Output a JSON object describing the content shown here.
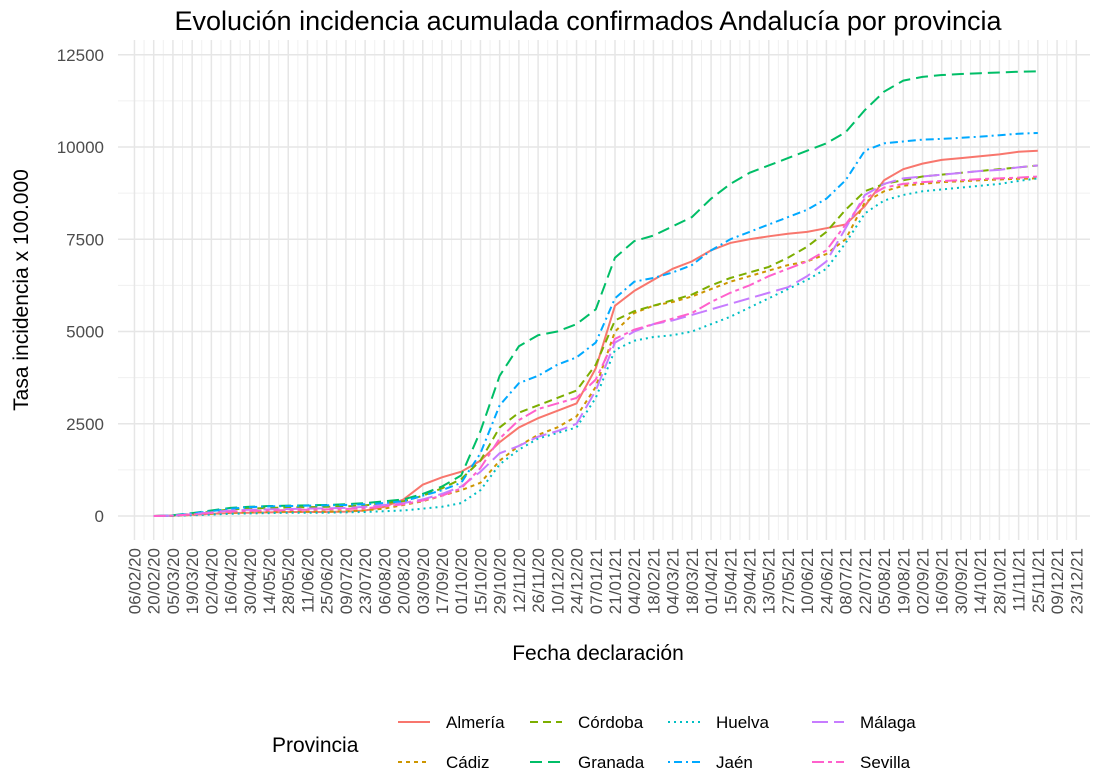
{
  "chart_data": {
    "type": "line",
    "title": "Evolución incidencia acumulada confirmados Andalucía por provincia",
    "x_label": "Fecha declaración",
    "y_label": "Tasa incidencia x 100.000",
    "legend_title": "Provincia",
    "x": [
      "20/02/20",
      "05/03/20",
      "19/03/20",
      "02/04/20",
      "16/04/20",
      "30/04/20",
      "14/05/20",
      "28/05/20",
      "11/06/20",
      "25/06/20",
      "09/07/20",
      "23/07/20",
      "06/08/20",
      "20/08/20",
      "03/09/20",
      "17/09/20",
      "01/10/20",
      "15/10/20",
      "29/10/20",
      "12/11/20",
      "26/11/20",
      "10/12/20",
      "24/12/20",
      "07/01/21",
      "21/01/21",
      "04/02/21",
      "18/02/21",
      "04/03/21",
      "18/03/21",
      "01/04/21",
      "15/04/21",
      "29/04/21",
      "13/05/21",
      "27/05/21",
      "10/06/21",
      "24/06/21",
      "08/07/21",
      "22/07/21",
      "05/08/21",
      "19/08/21",
      "02/09/21",
      "16/09/21",
      "30/09/21",
      "14/10/21",
      "28/10/21",
      "11/11/21",
      "25/11/21"
    ],
    "series": [
      {
        "name": "Almería",
        "color": "#F8766D",
        "linetype": "solid",
        "values": [
          0,
          10,
          30,
          60,
          80,
          90,
          100,
          110,
          110,
          110,
          120,
          150,
          250,
          450,
          850,
          1050,
          1200,
          1500,
          2000,
          2400,
          2650,
          2850,
          3050,
          4000,
          5700,
          6100,
          6400,
          6700,
          6900,
          7200,
          7400,
          7500,
          7580,
          7650,
          7700,
          7800,
          7900,
          8400,
          9100,
          9400,
          9550,
          9650,
          9700,
          9750,
          9800,
          9870,
          9900
        ]
      },
      {
        "name": "Cádiz",
        "color": "#CD9600",
        "linetype": "dotted-dash",
        "values": [
          0,
          5,
          30,
          60,
          90,
          100,
          110,
          120,
          120,
          120,
          130,
          150,
          200,
          300,
          400,
          550,
          700,
          900,
          1500,
          1900,
          2200,
          2400,
          2700,
          3500,
          5000,
          5500,
          5700,
          5800,
          5950,
          6150,
          6350,
          6500,
          6650,
          6800,
          6900,
          7100,
          7500,
          8500,
          8800,
          8950,
          9000,
          9050,
          9070,
          9100,
          9120,
          9140,
          9150
        ]
      },
      {
        "name": "Córdoba",
        "color": "#7CAE00",
        "linetype": "dashed",
        "values": [
          0,
          10,
          60,
          120,
          180,
          200,
          220,
          230,
          240,
          250,
          260,
          290,
          350,
          400,
          550,
          750,
          1000,
          1500,
          2400,
          2800,
          3000,
          3200,
          3400,
          4100,
          5300,
          5550,
          5700,
          5850,
          6000,
          6250,
          6450,
          6600,
          6750,
          7000,
          7300,
          7700,
          8300,
          8800,
          9000,
          9100,
          9200,
          9250,
          9300,
          9350,
          9400,
          9450,
          9500
        ]
      },
      {
        "name": "Granada",
        "color": "#00BE67",
        "linetype": "longdash",
        "values": [
          0,
          20,
          80,
          150,
          220,
          250,
          270,
          280,
          290,
          300,
          320,
          350,
          400,
          450,
          600,
          800,
          1100,
          2300,
          3800,
          4600,
          4900,
          5000,
          5200,
          5600,
          7000,
          7450,
          7600,
          7850,
          8100,
          8600,
          9000,
          9300,
          9500,
          9700,
          9900,
          10100,
          10400,
          11000,
          11500,
          11800,
          11900,
          11950,
          11980,
          12000,
          12020,
          12040,
          12050
        ]
      },
      {
        "name": "Huelva",
        "color": "#00BFC4",
        "linetype": "dotted",
        "values": [
          0,
          5,
          20,
          40,
          60,
          70,
          80,
          90,
          90,
          90,
          100,
          110,
          130,
          150,
          200,
          250,
          350,
          700,
          1400,
          1800,
          2100,
          2250,
          2400,
          3200,
          4500,
          4750,
          4850,
          4900,
          5000,
          5200,
          5400,
          5650,
          5900,
          6150,
          6400,
          6700,
          7400,
          8200,
          8550,
          8700,
          8800,
          8850,
          8900,
          8950,
          9000,
          9080,
          9150
        ]
      },
      {
        "name": "Jaén",
        "color": "#00A9FF",
        "linetype": "dotdash",
        "values": [
          0,
          15,
          70,
          130,
          200,
          240,
          260,
          270,
          280,
          290,
          300,
          320,
          350,
          400,
          550,
          700,
          900,
          1700,
          3000,
          3600,
          3800,
          4100,
          4300,
          4700,
          5900,
          6350,
          6450,
          6600,
          6800,
          7200,
          7500,
          7700,
          7900,
          8100,
          8300,
          8600,
          9100,
          9900,
          10100,
          10150,
          10200,
          10220,
          10250,
          10280,
          10320,
          10360,
          10380
        ]
      },
      {
        "name": "Málaga",
        "color": "#C77CFF",
        "linetype": "longdash2",
        "values": [
          0,
          10,
          50,
          100,
          150,
          170,
          180,
          190,
          200,
          210,
          220,
          250,
          300,
          350,
          450,
          600,
          800,
          1200,
          1700,
          1900,
          2150,
          2300,
          2500,
          3400,
          4700,
          5000,
          5200,
          5300,
          5450,
          5600,
          5750,
          5900,
          6050,
          6200,
          6500,
          6900,
          7800,
          8700,
          9000,
          9150,
          9200,
          9250,
          9300,
          9350,
          9380,
          9450,
          9500
        ]
      },
      {
        "name": "Sevilla",
        "color": "#FF61CC",
        "linetype": "twodash",
        "values": [
          0,
          10,
          40,
          80,
          120,
          140,
          150,
          160,
          170,
          180,
          190,
          210,
          260,
          320,
          420,
          550,
          750,
          1300,
          2100,
          2600,
          2900,
          3050,
          3200,
          3700,
          4800,
          5050,
          5200,
          5350,
          5500,
          5800,
          6050,
          6250,
          6500,
          6700,
          6900,
          7200,
          7900,
          8600,
          8900,
          9000,
          9050,
          9080,
          9100,
          9130,
          9150,
          9170,
          9200
        ]
      }
    ],
    "xlim": [
      "25/01/20",
      "02/01/22"
    ],
    "xticks": [
      "06/02/20",
      "20/02/20",
      "05/03/20",
      "19/03/20",
      "02/04/20",
      "16/04/20",
      "30/04/20",
      "14/05/20",
      "28/05/20",
      "11/06/20",
      "25/06/20",
      "09/07/20",
      "23/07/20",
      "06/08/20",
      "20/08/20",
      "03/09/20",
      "17/09/20",
      "01/10/20",
      "15/10/20",
      "29/10/20",
      "12/11/20",
      "26/11/20",
      "10/12/20",
      "24/12/20",
      "07/01/21",
      "21/01/21",
      "04/02/21",
      "18/02/21",
      "04/03/21",
      "18/03/21",
      "01/04/21",
      "15/04/21",
      "29/04/21",
      "13/05/21",
      "27/05/21",
      "10/06/21",
      "24/06/21",
      "08/07/21",
      "22/07/21",
      "05/08/21",
      "19/08/21",
      "02/09/21",
      "16/09/21",
      "30/09/21",
      "14/10/21",
      "28/10/21",
      "11/11/21",
      "25/11/21",
      "09/12/21",
      "23/12/21"
    ],
    "ylim": [
      -650,
      12900
    ],
    "yticks": [
      0,
      2500,
      5000,
      7500,
      10000,
      12500
    ],
    "grid": true,
    "legend": "bottom"
  }
}
